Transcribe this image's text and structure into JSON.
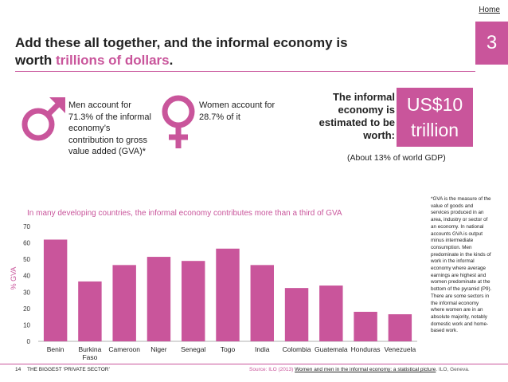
{
  "header": {
    "home_label": "Home",
    "section_number": "3",
    "headline_part1": "Add these all together, and the informal economy is worth ",
    "headline_highlight": "trillions of dollars",
    "headline_end": "."
  },
  "stats": {
    "men_text": "Men account for 71.3% of the informal economy’s contribution to gross value added (GVA)*",
    "women_text": "Women account for 28.7% of it",
    "male_symbol": "♂",
    "female_symbol": "♀",
    "male_icon": "male-symbol-icon",
    "female_icon": "female-symbol-icon",
    "estimate_label": "The informal economy is estimated to be worth:",
    "estimate_value": "US$10 trillion",
    "gdp_note": "(About 13% of world GDP)"
  },
  "footnote": "*GVA is the measure of the value of goods and services produced in an area, industry or sector of an economy. In national accounts GVA is output minus intermediate consumption. Men predominate in the kinds of work in the informal economy where average earnings are highest and women predominate at the bottom of the pyramid (P9). There are some sectors in the informal economy where women are in an absolute majority, notably domestic work and home-based work.",
  "footer": {
    "page_number": "14",
    "doc_title": "THE BIGGEST ‘PRIVATE SECTOR’",
    "source_label": "Source:",
    "source_org": "ILO (2013)",
    "source_title": "Women and men in the informal economy: a statistical picture",
    "source_end": ". ILO, Geneva."
  },
  "colors": {
    "accent": "#c9559b",
    "bar": "#c9559b"
  },
  "chart_data": {
    "type": "bar",
    "title": "In many developing countries, the informal economy contributes more than a third of GVA",
    "xlabel": "",
    "ylabel": "% GVA",
    "ylim": [
      0,
      70
    ],
    "yticks": [
      0,
      10,
      20,
      30,
      40,
      50,
      60,
      70
    ],
    "grid": false,
    "categories": [
      "Benin",
      "Burkina Faso",
      "Cameroon",
      "Niger",
      "Senegal",
      "Togo",
      "India",
      "Colombia",
      "Guatemala",
      "Honduras",
      "Venezuela"
    ],
    "values": [
      62,
      36.5,
      46.5,
      51.5,
      49,
      56.5,
      46.5,
      32.5,
      34,
      18,
      16.5
    ]
  }
}
